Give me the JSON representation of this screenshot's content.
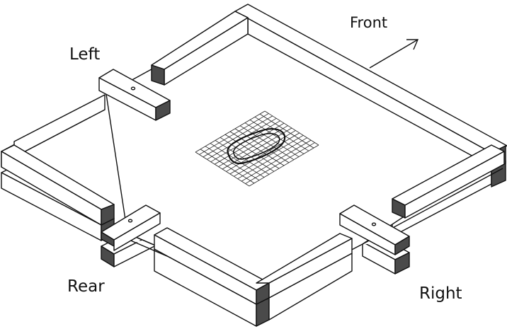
{
  "labels": {
    "front": "Front",
    "left": "Left",
    "rear": "Rear",
    "right": "Right"
  },
  "colors": {
    "stroke": "#111111",
    "top_face": "#ffffff",
    "end_face": "#4a4a4a",
    "side_face": "#ffffff",
    "grid": "#222222"
  }
}
